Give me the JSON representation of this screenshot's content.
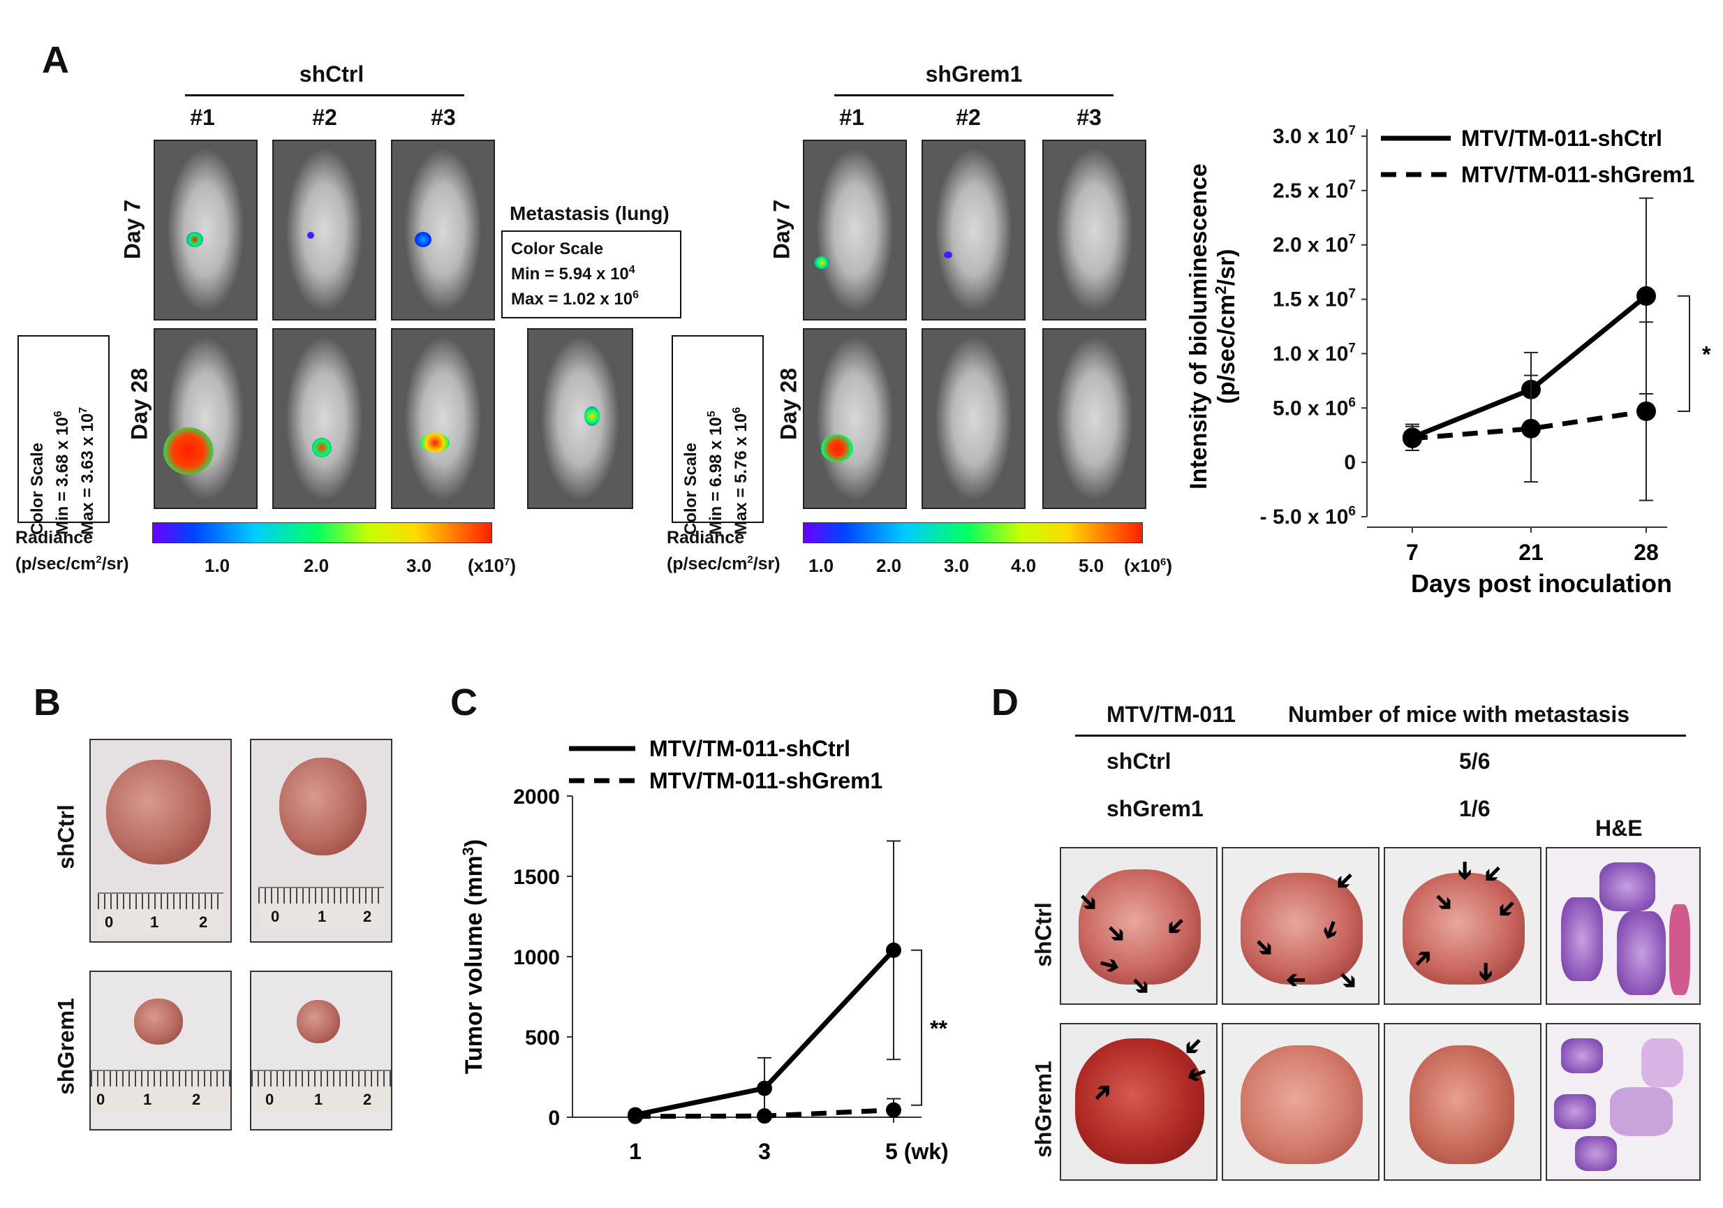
{
  "panel_a": {
    "letter": "A",
    "shctrl_header": "shCtrl",
    "shgrem1_header": "shGrem1",
    "mouse_ids": [
      "#1",
      "#2",
      "#3"
    ],
    "day7": "Day 7",
    "day28": "Day 28",
    "metastasis_label": "Metastasis (lung)",
    "scale_small": {
      "title": "Color Scale",
      "min": "Min = 5.94 x 10",
      "min_exp": "4",
      "max": "Max = 1.02 x 10",
      "max_exp": "6"
    },
    "scale_left": {
      "title": "Color Scale",
      "min": "Min = 3.68 x 10",
      "min_exp": "6",
      "max": "Max = 3.63 x 10",
      "max_exp": "7"
    },
    "scale_right": {
      "title": "Color Scale",
      "min": "Min = 6.98 x 10",
      "min_exp": "5",
      "max": "Max = 5.76 x 10",
      "max_exp": "6"
    },
    "radiance_line1": "Radiance",
    "radiance_line2": "(p/sec/cm",
    "radiance_exp": "2",
    "radiance_tail": "/sr)",
    "left_bar_ticks": [
      "1.0",
      "2.0",
      "3.0"
    ],
    "left_bar_unit": "(x10",
    "left_bar_unit_exp": "7",
    "right_bar_ticks": [
      "1.0",
      "2.0",
      "3.0",
      "4.0",
      "5.0"
    ],
    "right_bar_unit": "(x10",
    "right_bar_unit_exp": "6",
    "unit_close": ")"
  },
  "panel_b": {
    "letter": "B",
    "row1": "shCtrl",
    "row2": "shGrem1",
    "ruler_marks": [
      "0",
      "1",
      "2"
    ]
  },
  "panel_d": {
    "letter": "D",
    "table_col1": "MTV/TM-011",
    "table_col2": "Number of mice with metastasis",
    "rows": [
      {
        "group": "shCtrl",
        "value": "5/6"
      },
      {
        "group": "shGrem1",
        "value": "1/6"
      }
    ],
    "he_label": "H&E",
    "row1": "shCtrl",
    "row2": "shGrem1"
  },
  "chart_data": [
    {
      "type": "line",
      "panel": "A",
      "x": [
        7,
        21,
        28
      ],
      "series": [
        {
          "name": "MTV/TM-011-shCtrl",
          "style": "solid",
          "values": [
            2300000,
            6700000,
            15300000
          ],
          "err": [
            1200000,
            3400000,
            9000000
          ]
        },
        {
          "name": "MTV/TM-011-shGrem1",
          "style": "dashed",
          "values": [
            2200000,
            3100000,
            4700000
          ],
          "err": [
            1100000,
            4900000,
            8200000
          ]
        }
      ],
      "xlabel": "Days post inoculation",
      "ylabel": "Intensity of bioluminescence",
      "ylabel2_pre": "(p/sec/cm",
      "ylabel2_exp": "2",
      "ylabel2_post": "/sr)",
      "ylim": [
        -5000000,
        30000000
      ],
      "yticks": [
        {
          "value": 30000000,
          "mant": "3.0 x 10",
          "exp": "7"
        },
        {
          "value": 25000000,
          "mant": "2.5 x 10",
          "exp": "7"
        },
        {
          "value": 20000000,
          "mant": "2.0 x 10",
          "exp": "7"
        },
        {
          "value": 15000000,
          "mant": "1.5 x 10",
          "exp": "7"
        },
        {
          "value": 10000000,
          "mant": "1.0 x 10",
          "exp": "7"
        },
        {
          "value": 5000000,
          "mant": "5.0 x 10",
          "exp": "6"
        },
        {
          "value": 0,
          "mant": "0",
          "exp": ""
        },
        {
          "value": -5000000,
          "mant": "- 5.0 x 10",
          "exp": "6"
        }
      ],
      "xticks": [
        "7",
        "21",
        "28"
      ],
      "significance": "*"
    },
    {
      "type": "line",
      "panel": "C",
      "letter": "C",
      "x": [
        1,
        3,
        5
      ],
      "series": [
        {
          "name": "MTV/TM-011-shCtrl",
          "style": "solid",
          "values": [
            15,
            180,
            1040
          ],
          "err": [
            5,
            190,
            680
          ]
        },
        {
          "name": "MTV/TM-011-shGrem1",
          "style": "dashed",
          "values": [
            5,
            8,
            45
          ],
          "err": [
            3,
            5,
            70
          ]
        }
      ],
      "ylabel_pre": "Tumor volume (mm",
      "ylabel_exp": "3",
      "ylabel_post": ")",
      "ylim": [
        0,
        2000
      ],
      "yticks": [
        "0",
        "500",
        "1000",
        "1500",
        "2000"
      ],
      "xticks": [
        "1",
        "3",
        "5 (wk)"
      ],
      "significance": "**"
    }
  ]
}
